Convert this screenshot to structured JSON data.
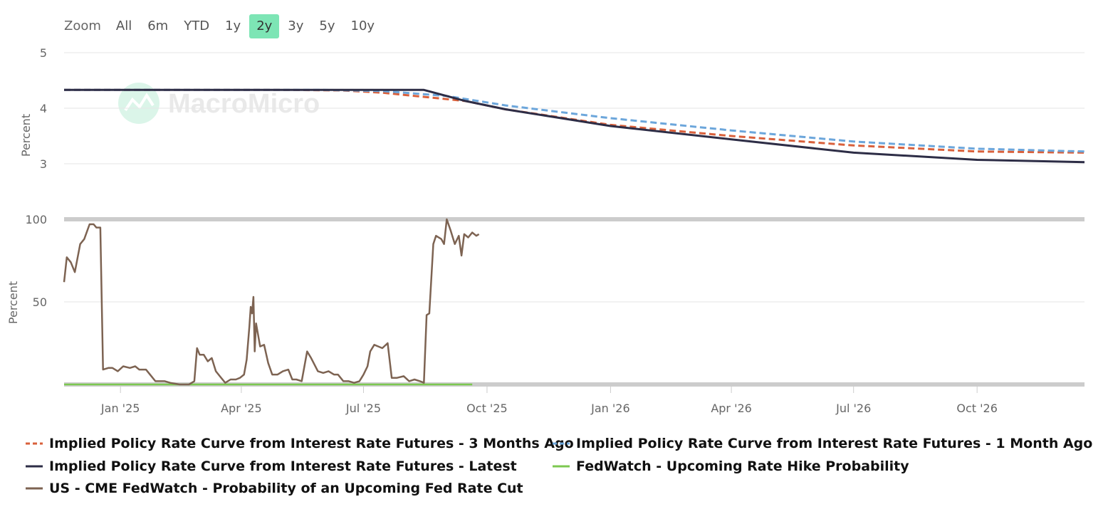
{
  "zoom": {
    "label": "Zoom",
    "buttons": [
      "All",
      "6m",
      "YTD",
      "1y",
      "2y",
      "3y",
      "5y",
      "10y"
    ],
    "active": "2y",
    "active_color": "#7de5b5"
  },
  "watermark": "MacroMicro",
  "legend": [
    {
      "label": "Implied Policy Rate Curve from Interest Rate Futures - 3 Months Ago",
      "color": "#d9603b",
      "dash": true
    },
    {
      "label": "Implied Policy Rate Curve from Interest Rate Futures - 1 Month Ago",
      "color": "#6ca6db",
      "dash": true
    },
    {
      "label": "Implied Policy Rate Curve from Interest Rate Futures - Latest",
      "color": "#2d2d46",
      "dash": false
    },
    {
      "label": "FedWatch - Upcoming Rate Hike Probability",
      "color": "#7cc850",
      "dash": false
    },
    {
      "label": "US - CME FedWatch - Probability of an Upcoming Fed Rate Cut",
      "color": "#7d6352",
      "dash": false
    }
  ],
  "chart_data": [
    {
      "type": "line",
      "ylabel": "Percent",
      "yticks": [
        3,
        4,
        5
      ],
      "ylim": [
        3,
        5
      ],
      "x_range": [
        "2024-11-20",
        "2026-12-20"
      ],
      "grid": true,
      "series": [
        {
          "name": "Implied Policy Rate Curve from Interest Rate Futures - 3 Months Ago",
          "color": "#d9603b",
          "dash": true,
          "points": [
            [
              "2024-11-20",
              4.33
            ],
            [
              "2025-05-01",
              4.33
            ],
            [
              "2025-06-15",
              4.32
            ],
            [
              "2025-07-15",
              4.28
            ],
            [
              "2025-09-15",
              4.13
            ],
            [
              "2025-10-15",
              3.98
            ],
            [
              "2026-01-01",
              3.7
            ],
            [
              "2026-04-01",
              3.5
            ],
            [
              "2026-07-01",
              3.33
            ],
            [
              "2026-10-01",
              3.22
            ],
            [
              "2026-12-20",
              3.2
            ]
          ]
        },
        {
          "name": "Implied Policy Rate Curve from Interest Rate Futures - 1 Month Ago",
          "color": "#6ca6db",
          "dash": true,
          "points": [
            [
              "2024-11-20",
              4.33
            ],
            [
              "2025-06-01",
              4.33
            ],
            [
              "2025-07-15",
              4.31
            ],
            [
              "2025-09-01",
              4.22
            ],
            [
              "2025-10-15",
              4.05
            ],
            [
              "2026-01-01",
              3.82
            ],
            [
              "2026-04-01",
              3.6
            ],
            [
              "2026-07-01",
              3.4
            ],
            [
              "2026-10-01",
              3.27
            ],
            [
              "2026-12-20",
              3.22
            ]
          ]
        },
        {
          "name": "Implied Policy Rate Curve from Interest Rate Futures - Latest",
          "color": "#2d2d46",
          "dash": false,
          "points": [
            [
              "2024-11-20",
              4.33
            ],
            [
              "2025-08-15",
              4.33
            ],
            [
              "2025-09-15",
              4.13
            ],
            [
              "2025-10-15",
              3.98
            ],
            [
              "2026-01-01",
              3.68
            ],
            [
              "2026-04-01",
              3.44
            ],
            [
              "2026-07-01",
              3.2
            ],
            [
              "2026-10-01",
              3.07
            ],
            [
              "2026-12-20",
              3.03
            ]
          ]
        }
      ]
    },
    {
      "type": "line",
      "ylabel": "Percent",
      "yticks": [
        50,
        100
      ],
      "ylim": [
        0,
        100
      ],
      "x_range": [
        "2024-11-20",
        "2026-12-20"
      ],
      "xticks": [
        [
          "2025-01-01",
          "Jan '25"
        ],
        [
          "2025-04-01",
          "Apr '25"
        ],
        [
          "2025-07-01",
          "Jul '25"
        ],
        [
          "2025-10-01",
          "Oct '25"
        ],
        [
          "2026-01-01",
          "Jan '26"
        ],
        [
          "2026-04-01",
          "Apr '26"
        ],
        [
          "2026-07-01",
          "Jul '26"
        ],
        [
          "2026-10-01",
          "Oct '26"
        ]
      ],
      "grid": true,
      "series": [
        {
          "name": "FedWatch - Upcoming Rate Hike Probability",
          "color": "#7cc850",
          "dash": false,
          "points": [
            [
              "2024-11-20",
              0
            ],
            [
              "2025-09-20",
              0
            ]
          ]
        },
        {
          "name": "US - CME FedWatch - Probability of an Upcoming Fed Rate Cut",
          "color": "#7d6352",
          "dash": false,
          "points": [
            [
              "2024-11-20",
              62
            ],
            [
              "2024-11-22",
              77
            ],
            [
              "2024-11-25",
              74
            ],
            [
              "2024-11-28",
              68
            ],
            [
              "2024-12-02",
              85
            ],
            [
              "2024-12-05",
              88
            ],
            [
              "2024-12-09",
              97
            ],
            [
              "2024-12-12",
              97
            ],
            [
              "2024-12-14",
              95
            ],
            [
              "2024-12-17",
              95
            ],
            [
              "2024-12-19",
              9
            ],
            [
              "2024-12-23",
              10
            ],
            [
              "2024-12-26",
              10
            ],
            [
              "2024-12-30",
              8
            ],
            [
              "2025-01-03",
              11
            ],
            [
              "2025-01-08",
              10
            ],
            [
              "2025-01-12",
              11
            ],
            [
              "2025-01-15",
              9
            ],
            [
              "2025-01-20",
              9
            ],
            [
              "2025-01-24",
              5
            ],
            [
              "2025-01-27",
              2
            ],
            [
              "2025-02-03",
              2
            ],
            [
              "2025-02-07",
              1
            ],
            [
              "2025-02-14",
              0
            ],
            [
              "2025-02-21",
              0
            ],
            [
              "2025-02-25",
              2
            ],
            [
              "2025-02-27",
              22
            ],
            [
              "2025-03-01",
              18
            ],
            [
              "2025-03-04",
              18
            ],
            [
              "2025-03-07",
              14
            ],
            [
              "2025-03-10",
              16
            ],
            [
              "2025-03-13",
              8
            ],
            [
              "2025-03-16",
              5
            ],
            [
              "2025-03-20",
              1
            ],
            [
              "2025-03-24",
              3
            ],
            [
              "2025-03-28",
              3
            ],
            [
              "2025-03-31",
              4
            ],
            [
              "2025-04-03",
              6
            ],
            [
              "2025-04-05",
              15
            ],
            [
              "2025-04-07",
              35
            ],
            [
              "2025-04-08",
              47
            ],
            [
              "2025-04-09",
              43
            ],
            [
              "2025-04-10",
              53
            ],
            [
              "2025-04-11",
              20
            ],
            [
              "2025-04-12",
              37
            ],
            [
              "2025-04-15",
              23
            ],
            [
              "2025-04-18",
              24
            ],
            [
              "2025-04-21",
              13
            ],
            [
              "2025-04-24",
              6
            ],
            [
              "2025-04-28",
              6
            ],
            [
              "2025-05-02",
              8
            ],
            [
              "2025-05-06",
              9
            ],
            [
              "2025-05-09",
              3
            ],
            [
              "2025-05-12",
              3
            ],
            [
              "2025-05-16",
              2
            ],
            [
              "2025-05-20",
              20
            ],
            [
              "2025-05-23",
              16
            ],
            [
              "2025-05-28",
              8
            ],
            [
              "2025-06-01",
              7
            ],
            [
              "2025-06-05",
              8
            ],
            [
              "2025-06-09",
              6
            ],
            [
              "2025-06-12",
              6
            ],
            [
              "2025-06-16",
              2
            ],
            [
              "2025-06-20",
              2
            ],
            [
              "2025-06-24",
              1
            ],
            [
              "2025-06-28",
              2
            ],
            [
              "2025-07-01",
              6
            ],
            [
              "2025-07-04",
              11
            ],
            [
              "2025-07-06",
              20
            ],
            [
              "2025-07-09",
              24
            ],
            [
              "2025-07-12",
              23
            ],
            [
              "2025-07-15",
              22
            ],
            [
              "2025-07-19",
              25
            ],
            [
              "2025-07-22",
              4
            ],
            [
              "2025-07-26",
              4
            ],
            [
              "2025-07-31",
              5
            ],
            [
              "2025-08-04",
              2
            ],
            [
              "2025-08-08",
              3
            ],
            [
              "2025-08-12",
              2
            ],
            [
              "2025-08-15",
              1
            ],
            [
              "2025-08-17",
              42
            ],
            [
              "2025-08-19",
              43
            ],
            [
              "2025-08-22",
              85
            ],
            [
              "2025-08-24",
              90
            ],
            [
              "2025-08-28",
              88
            ],
            [
              "2025-08-30",
              85
            ],
            [
              "2025-09-01",
              100
            ],
            [
              "2025-09-04",
              93
            ],
            [
              "2025-09-07",
              85
            ],
            [
              "2025-09-10",
              90
            ],
            [
              "2025-09-12",
              78
            ],
            [
              "2025-09-14",
              91
            ],
            [
              "2025-09-17",
              89
            ],
            [
              "2025-09-20",
              92
            ],
            [
              "2025-09-23",
              90
            ],
            [
              "2025-09-25",
              91
            ]
          ]
        }
      ]
    }
  ]
}
